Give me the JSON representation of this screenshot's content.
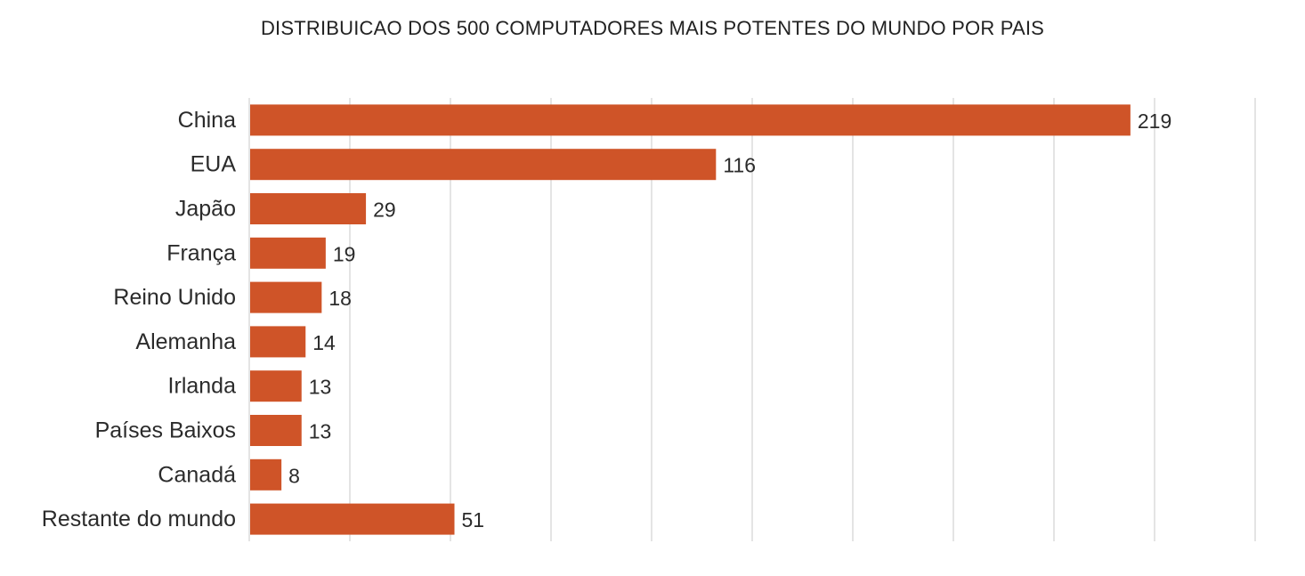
{
  "chart_data": {
    "type": "bar",
    "orientation": "horizontal",
    "title": "DISTRIBUICAO DOS 500 COMPUTADORES MAIS POTENTES DO MUNDO POR PAIS",
    "categories": [
      "China",
      "EUA",
      "Japão",
      "França",
      "Reino Unido",
      "Alemanha",
      "Irlanda",
      "Países Baixos",
      "Canadá",
      "Restante do mundo"
    ],
    "values": [
      219,
      116,
      29,
      19,
      18,
      14,
      13,
      13,
      8,
      51
    ],
    "xlim": [
      0,
      250
    ],
    "grid": true,
    "data_labels": true,
    "bar_color": "#CF5428"
  }
}
